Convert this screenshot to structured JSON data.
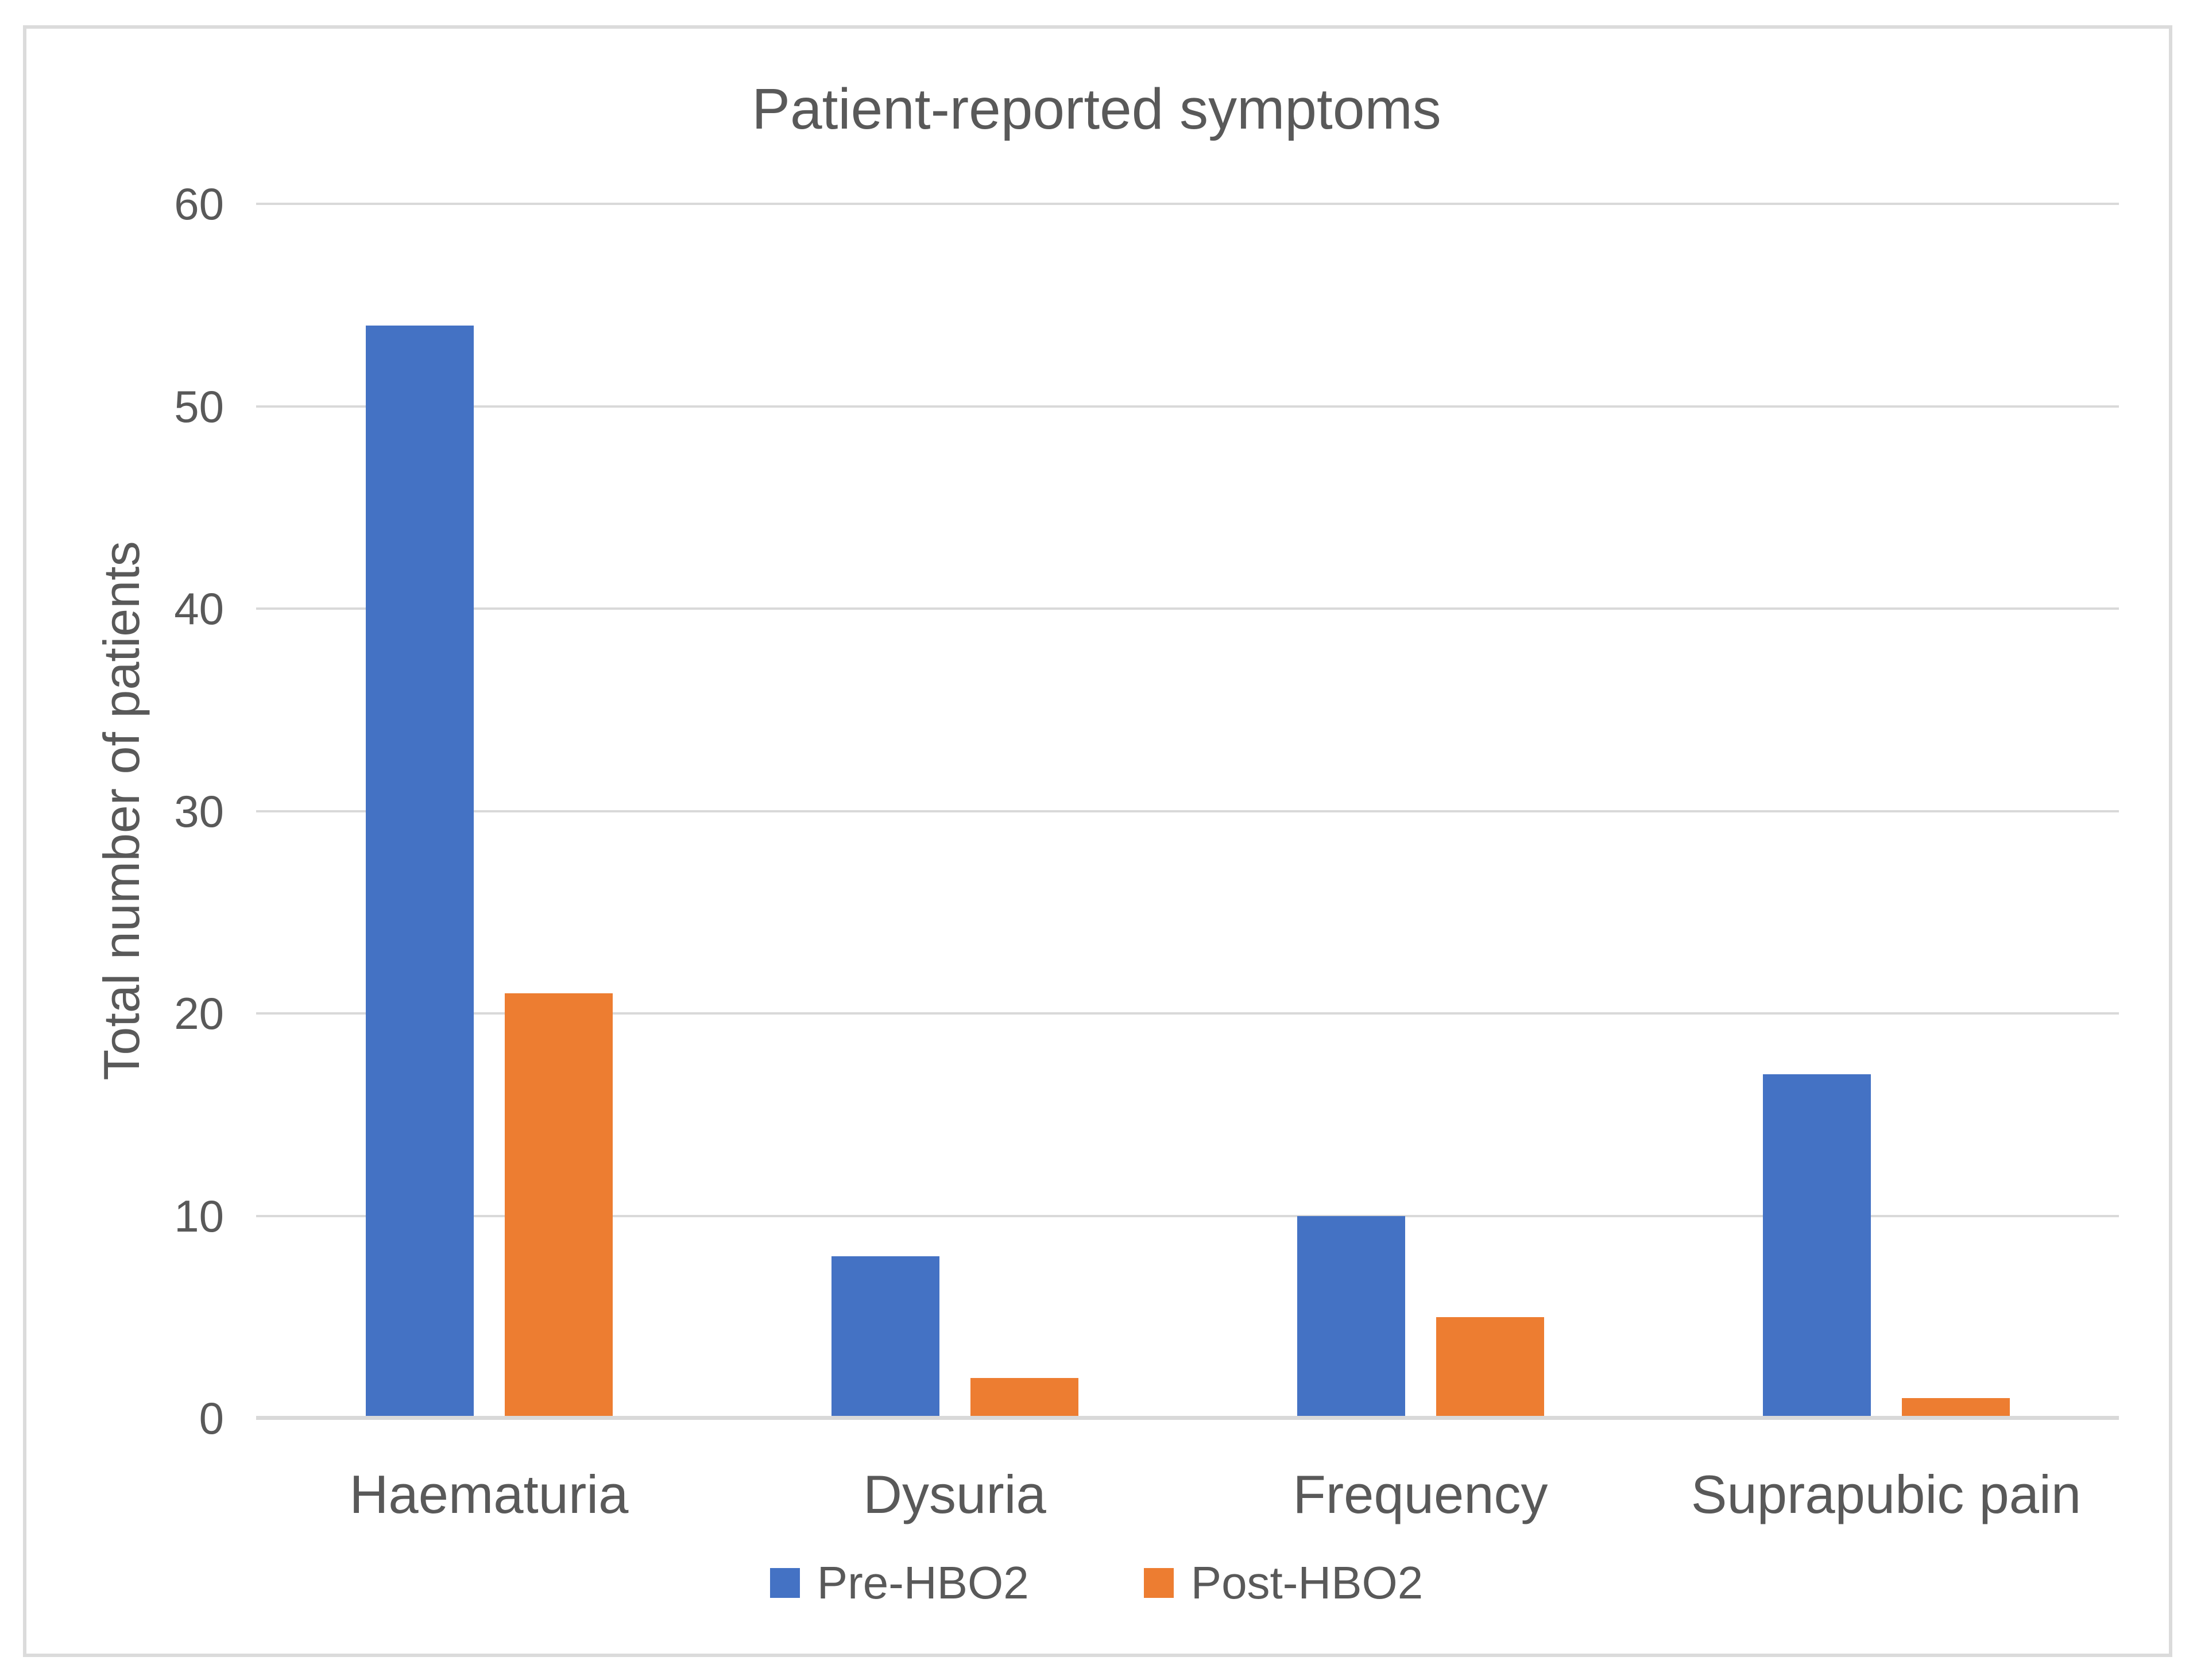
{
  "chart_data": {
    "type": "bar",
    "title": "Patient-reported symptoms",
    "xlabel": "",
    "ylabel": "Total number of patients",
    "categories": [
      "Haematuria",
      "Dysuria",
      "Frequency",
      "Suprapubic pain"
    ],
    "series": [
      {
        "name": "Pre-HBO2",
        "color": "#4472C4",
        "values": [
          54,
          8,
          10,
          17
        ]
      },
      {
        "name": "Post-HBO2",
        "color": "#ED7D31",
        "values": [
          21,
          2,
          5,
          1
        ]
      }
    ],
    "ylim": [
      0,
      60
    ],
    "ytick_step": 10,
    "ytick_labels": [
      "0",
      "10",
      "20",
      "30",
      "40",
      "50",
      "60"
    ],
    "grid": true,
    "legend_position": "bottom"
  },
  "colors": {
    "text": "#595959",
    "gridline": "#D9D9D9",
    "axis_line": "#D9D9D9",
    "frame_border": "#DBDBDB",
    "background": "#FFFFFF"
  }
}
